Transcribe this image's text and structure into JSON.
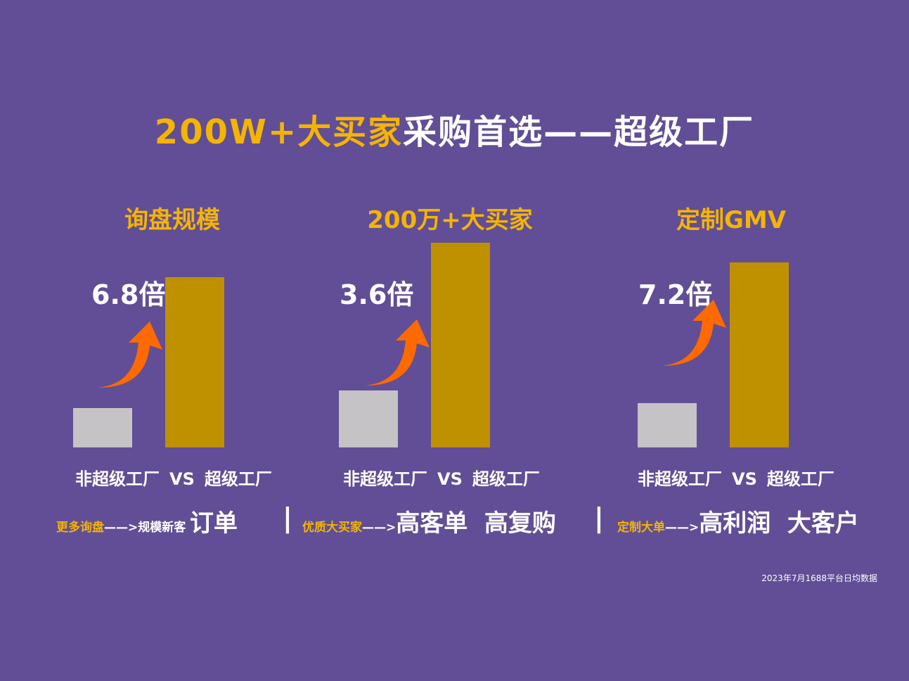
{
  "title": {
    "highlight": "200W+大买家",
    "rest": "采购首选——超级工厂"
  },
  "chart_data": [
    {
      "type": "bar",
      "title": "询盘规模",
      "categories": [
        "非超级工厂",
        "超级工厂"
      ],
      "values": [
        1,
        6.8
      ],
      "multiple_label": "6.8倍",
      "comparison": {
        "left": "非超级工厂",
        "vs": "VS",
        "right": "超级工厂"
      }
    },
    {
      "type": "bar",
      "title": "200万+大买家",
      "categories": [
        "非超级工厂",
        "超级工厂"
      ],
      "values": [
        1,
        3.6
      ],
      "multiple_label": "3.6倍",
      "comparison": {
        "left": "非超级工厂",
        "vs": "VS",
        "right": "超级工厂"
      }
    },
    {
      "type": "bar",
      "title": "定制GMV",
      "categories": [
        "非超级工厂",
        "超级工厂"
      ],
      "values": [
        1,
        7.2
      ],
      "multiple_label": "7.2倍",
      "comparison": {
        "left": "非超级工厂",
        "vs": "VS",
        "right": "超级工厂"
      }
    }
  ],
  "benefits": [
    {
      "yellow": "更多询盘",
      "arrow": "——>",
      "white": "规模新客",
      "big": "订单"
    },
    {
      "yellow": "优质大买家",
      "arrow": "——>",
      "big": "高客单  高复购"
    },
    {
      "yellow": "定制大单",
      "arrow": "——>",
      "big": "高利润  大客户"
    }
  ],
  "divider": "|",
  "note": "2023年7月1688平台日均数据",
  "colors": {
    "background": "#614E96",
    "accent": "#F5B400",
    "gold_bar": "#BF9000",
    "gray_bar": "#C5C3C6",
    "arrow": "#FF6A00"
  }
}
